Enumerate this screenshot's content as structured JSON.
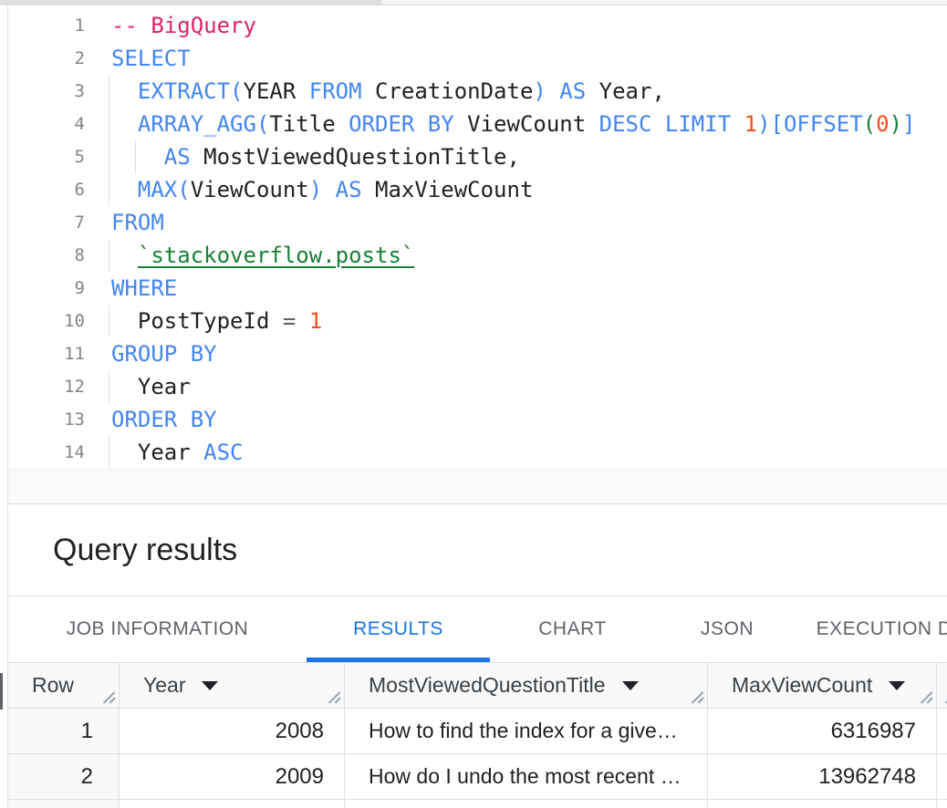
{
  "editor": {
    "language": "SQL",
    "lines": [
      {
        "n": "1",
        "guides": [],
        "tokens": [
          [
            "-- BigQuery",
            "comment"
          ]
        ]
      },
      {
        "n": "2",
        "guides": [],
        "tokens": [
          [
            "SELECT",
            "kw"
          ]
        ]
      },
      {
        "n": "3",
        "guides": [
          0
        ],
        "tokens": [
          [
            "  ",
            "id"
          ],
          [
            "EXTRACT(",
            "kw"
          ],
          [
            "YEAR",
            "id"
          ],
          [
            " ",
            "id"
          ],
          [
            "FROM",
            "kw"
          ],
          [
            " CreationDate",
            "id"
          ],
          [
            ")",
            "kw"
          ],
          [
            " ",
            "id"
          ],
          [
            "AS",
            "kw"
          ],
          [
            " Year,",
            "id"
          ]
        ]
      },
      {
        "n": "4",
        "guides": [
          0
        ],
        "tokens": [
          [
            "  ",
            "id"
          ],
          [
            "ARRAY_AGG(",
            "kw"
          ],
          [
            "Title",
            "id"
          ],
          [
            " ",
            "id"
          ],
          [
            "ORDER BY",
            "kw"
          ],
          [
            " ",
            "id"
          ],
          [
            "ViewCount",
            "id"
          ],
          [
            " ",
            "id"
          ],
          [
            "DESC LIMIT",
            "kw"
          ],
          [
            " ",
            "id"
          ],
          [
            "1",
            "num"
          ],
          [
            ")[",
            "kw"
          ],
          [
            "OFFSET",
            "kw"
          ],
          [
            "(",
            "grn"
          ],
          [
            "0",
            "num"
          ],
          [
            ")",
            "grn"
          ],
          [
            "]",
            "kw"
          ]
        ]
      },
      {
        "n": "5",
        "guides": [
          0,
          2
        ],
        "tokens": [
          [
            "    ",
            "id"
          ],
          [
            "AS",
            "kw"
          ],
          [
            " MostViewedQuestionTitle,",
            "id"
          ]
        ]
      },
      {
        "n": "6",
        "guides": [
          0
        ],
        "tokens": [
          [
            "  ",
            "id"
          ],
          [
            "MAX(",
            "kw"
          ],
          [
            "ViewCount",
            "id"
          ],
          [
            ")",
            "kw"
          ],
          [
            " ",
            "id"
          ],
          [
            "AS",
            "kw"
          ],
          [
            " MaxViewCount",
            "id"
          ]
        ]
      },
      {
        "n": "7",
        "guides": [],
        "tokens": [
          [
            "FROM",
            "kw"
          ]
        ]
      },
      {
        "n": "8",
        "guides": [
          0
        ],
        "tokens": [
          [
            "  ",
            "id"
          ],
          [
            "`stackoverflow.posts`",
            "link"
          ]
        ]
      },
      {
        "n": "9",
        "guides": [],
        "tokens": [
          [
            "WHERE",
            "kw"
          ]
        ]
      },
      {
        "n": "10",
        "guides": [
          0
        ],
        "tokens": [
          [
            "  ",
            "id"
          ],
          [
            "PostTypeId ",
            "id"
          ],
          [
            "=",
            "op"
          ],
          [
            " ",
            "id"
          ],
          [
            "1",
            "num"
          ]
        ]
      },
      {
        "n": "11",
        "guides": [],
        "tokens": [
          [
            "GROUP BY",
            "kw"
          ]
        ]
      },
      {
        "n": "12",
        "guides": [
          0
        ],
        "tokens": [
          [
            "  ",
            "id"
          ],
          [
            "Year",
            "id"
          ]
        ]
      },
      {
        "n": "13",
        "guides": [],
        "tokens": [
          [
            "ORDER BY",
            "kw"
          ]
        ]
      },
      {
        "n": "14",
        "guides": [
          0
        ],
        "tokens": [
          [
            "  ",
            "id"
          ],
          [
            "Year",
            "id"
          ],
          [
            " ",
            "id"
          ],
          [
            "ASC",
            "kw"
          ]
        ]
      }
    ]
  },
  "results": {
    "title": "Query results",
    "tabs": [
      {
        "label": "JOB INFORMATION",
        "active": false
      },
      {
        "label": "RESULTS",
        "active": true
      },
      {
        "label": "CHART",
        "active": false
      },
      {
        "label": "JSON",
        "active": false
      },
      {
        "label": "EXECUTION DETAILS",
        "active": false
      }
    ],
    "table": {
      "columns": [
        {
          "label": "Row",
          "menu": false,
          "grip": true
        },
        {
          "label": "Year",
          "menu": true,
          "grip": true
        },
        {
          "label": "MostViewedQuestionTitle",
          "menu": true,
          "grip": true
        },
        {
          "label": "MaxViewCount",
          "menu": true,
          "grip": true
        },
        {
          "label": "",
          "menu": false,
          "grip": true
        }
      ],
      "rows": [
        {
          "cells": [
            "1",
            "2008",
            "How to find the index for a give…",
            "6316987",
            ""
          ]
        },
        {
          "cells": [
            "2",
            "2009",
            "How do I undo the most recent …",
            "13962748",
            ""
          ]
        }
      ]
    }
  },
  "icons": {
    "column_menu": "caret-down-icon",
    "column_resize": "resize-grip-icon"
  },
  "colors": {
    "keyword": "#4285f4",
    "comment": "#e0245e",
    "number": "#f4511e",
    "table_link": "#188038",
    "operator": "#5f6368",
    "identifier": "#202124",
    "line_number": "#80868b",
    "active_tab": "#1a73e8",
    "header_bg": "#f8f9fa",
    "divider": "#dadce0"
  }
}
